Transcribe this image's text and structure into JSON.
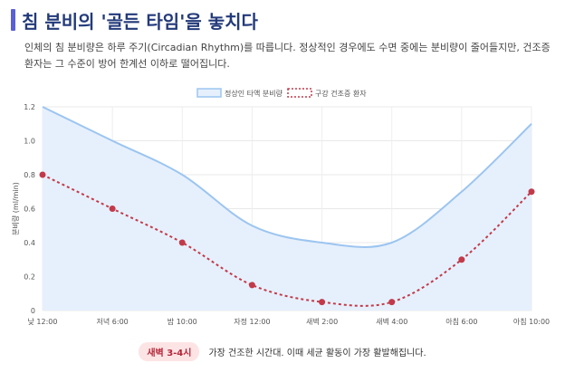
{
  "header": {
    "title": "침 분비의 '골든 타임'을 놓치다",
    "description": "인체의 침 분비량은 하루 주기(Circadian Rhythm)를 따릅니다. 정상적인 경우에도 수면 중에는 분비량이 줄어들지만, 건조증 환자는 그 수준이 방어 한계선 이하로 떨어집니다."
  },
  "chart_data": {
    "type": "line",
    "categories": [
      "낮 12:00",
      "저녁 6:00",
      "밤 10:00",
      "자정 12:00",
      "새벽 2:00",
      "새벽 4:00",
      "아침 6:00",
      "아침 10:00"
    ],
    "series": [
      {
        "name": "정상인 타액 분비량",
        "values": [
          1.2,
          1.0,
          0.8,
          0.5,
          0.4,
          0.4,
          0.7,
          1.1
        ],
        "color": "#9cc5f0",
        "fill": "#e6f0fc",
        "style": "solid-area"
      },
      {
        "name": "구강 건조증 환자",
        "values": [
          0.8,
          0.6,
          0.4,
          0.15,
          0.05,
          0.05,
          0.3,
          0.7
        ],
        "color": "#c23a4a",
        "style": "dashed-markers"
      }
    ],
    "ylabel": "분비량 (ml/min)",
    "xlabel": "",
    "ylim": [
      0,
      1.2
    ],
    "yticks": [
      "0",
      "0.2",
      "0.4",
      "0.6",
      "0.8",
      "1.0",
      "1.2"
    ],
    "grid": true,
    "legend": "top-center"
  },
  "note": {
    "badge": "새벽 3-4시",
    "text": "가장 건조한 시간대. 이때 세균 활동이 가장 활발해집니다."
  }
}
